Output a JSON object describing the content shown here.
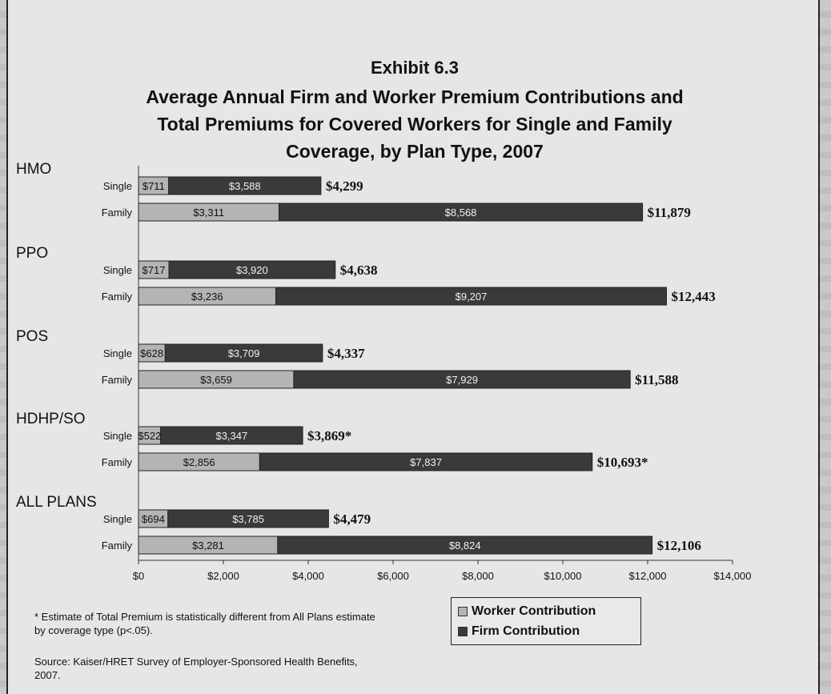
{
  "header": {
    "exhibit": "Exhibit 6.3",
    "title_line1": "Average Annual Firm and Worker Premium Contributions and",
    "title_line2": "Total Premiums for Covered Workers for Single and Family",
    "title_line3": "Coverage, by Plan Type, 2007"
  },
  "legend": {
    "worker": "Worker Contribution",
    "firm": "Firm Contribution"
  },
  "footnotes": {
    "asterisk_line1": "* Estimate of Total Premium is statistically different from All Plans estimate",
    "asterisk_line2": "by coverage type (p<.05).",
    "source_line1": "Source:  Kaiser/HRET Survey of Employer-Sponsored Health Benefits,",
    "source_line2": "2007."
  },
  "colors": {
    "worker": "#b4b4b4",
    "firm": "#3a3a3a"
  },
  "chart_data": {
    "type": "bar",
    "orientation": "horizontal",
    "stacked": true,
    "xlim": [
      0,
      14000
    ],
    "xticks": [
      "$0",
      "$2,000",
      "$4,000",
      "$6,000",
      "$8,000",
      "$10,000",
      "$12,000",
      "$14,000"
    ],
    "xtick_values": [
      0,
      2000,
      4000,
      6000,
      8000,
      10000,
      12000,
      14000
    ],
    "legend_position": "bottom-right",
    "groups": [
      {
        "name": "HMO",
        "bars": [
          {
            "label": "Single",
            "worker": 711,
            "firm": 3588,
            "total": 4299,
            "worker_label": "$711",
            "firm_label": "$3,588",
            "total_label": "$4,299"
          },
          {
            "label": "Family",
            "worker": 3311,
            "firm": 8568,
            "total": 11879,
            "worker_label": "$3,311",
            "firm_label": "$8,568",
            "total_label": "$11,879"
          }
        ]
      },
      {
        "name": "PPO",
        "bars": [
          {
            "label": "Single",
            "worker": 717,
            "firm": 3920,
            "total": 4638,
            "worker_label": "$717",
            "firm_label": "$3,920",
            "total_label": "$4,638"
          },
          {
            "label": "Family",
            "worker": 3236,
            "firm": 9207,
            "total": 12443,
            "worker_label": "$3,236",
            "firm_label": "$9,207",
            "total_label": "$12,443"
          }
        ]
      },
      {
        "name": "POS",
        "bars": [
          {
            "label": "Single",
            "worker": 628,
            "firm": 3709,
            "total": 4337,
            "worker_label": "$628",
            "firm_label": "$3,709",
            "total_label": "$4,337"
          },
          {
            "label": "Family",
            "worker": 3659,
            "firm": 7929,
            "total": 11588,
            "worker_label": "$3,659",
            "firm_label": "$7,929",
            "total_label": "$11,588"
          }
        ]
      },
      {
        "name": "HDHP/SO",
        "bars": [
          {
            "label": "Single",
            "worker": 522,
            "firm": 3347,
            "total": 3869,
            "worker_label": "$522",
            "firm_label": "$3,347",
            "total_label": "$3,869*"
          },
          {
            "label": "Family",
            "worker": 2856,
            "firm": 7837,
            "total": 10693,
            "worker_label": "$2,856",
            "firm_label": "$7,837",
            "total_label": "$10,693*"
          }
        ]
      },
      {
        "name": "ALL PLANS",
        "bars": [
          {
            "label": "Single",
            "worker": 694,
            "firm": 3785,
            "total": 4479,
            "worker_label": "$694",
            "firm_label": "$3,785",
            "total_label": "$4,479"
          },
          {
            "label": "Family",
            "worker": 3281,
            "firm": 8824,
            "total": 12106,
            "worker_label": "$3,281",
            "firm_label": "$8,824",
            "total_label": "$12,106"
          }
        ]
      }
    ]
  }
}
